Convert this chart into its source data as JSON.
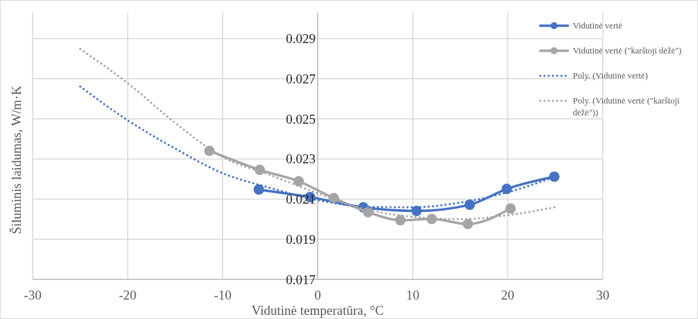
{
  "chart_data": {
    "type": "line",
    "xlabel": "Vidutinė temperatūra, °C",
    "ylabel": "Šiluminis laidumas, W/m·K",
    "xlim": [
      -30,
      30
    ],
    "xticks": [
      -30,
      -20,
      -10,
      0,
      10,
      20,
      30
    ],
    "ylim": [
      0.017,
      0.0303
    ],
    "yticks": [
      0.017,
      0.019,
      0.021,
      0.023,
      0.025,
      0.027,
      0.029
    ],
    "grid": true,
    "legend": "right",
    "series": [
      {
        "name": "Vidutinė vertė",
        "color": "#4472c4",
        "marker": "circle",
        "line_style": "solid",
        "x": [
          -6.2,
          -0.8,
          4.8,
          10.4,
          16.0,
          19.9,
          24.9
        ],
        "values": [
          0.02148,
          0.0211,
          0.02059,
          0.02041,
          0.02072,
          0.02151,
          0.02212
        ]
      },
      {
        "name": "Vidutinė vertė (\"karštoji dėžė\")",
        "color": "#a5a5a5",
        "marker": "circle",
        "line_style": "solid",
        "x": [
          -11.4,
          -6.1,
          -2.0,
          1.7,
          5.3,
          8.7,
          12.0,
          15.8,
          20.3
        ],
        "values": [
          0.02341,
          0.02246,
          0.02189,
          0.02105,
          0.02035,
          0.01995,
          0.02001,
          0.01976,
          0.02053
        ]
      },
      {
        "name": "Poly. (Vidutinė vertė)",
        "color": "#4472c4",
        "marker": "none",
        "line_style": "dotted",
        "x": [
          -25,
          -20,
          -15,
          -10,
          -5,
          0,
          5,
          10,
          15,
          20,
          25
        ],
        "values": [
          0.02661,
          0.02493,
          0.02352,
          0.02229,
          0.02156,
          0.02095,
          0.02063,
          0.02059,
          0.02083,
          0.02134,
          0.02212
        ]
      },
      {
        "name": "Poly. (Vidutinė vertė (\"karštoji dėžė\"))",
        "color": "#a5a5a5",
        "marker": "none",
        "line_style": "dotted",
        "x": [
          -25,
          -20,
          -15,
          -10,
          -5,
          0,
          5,
          10,
          15,
          20,
          25
        ],
        "values": [
          0.02848,
          0.02678,
          0.0248,
          0.0231,
          0.0222,
          0.0213,
          0.0205,
          0.02012,
          0.02,
          0.0202,
          0.0206
        ]
      }
    ]
  }
}
